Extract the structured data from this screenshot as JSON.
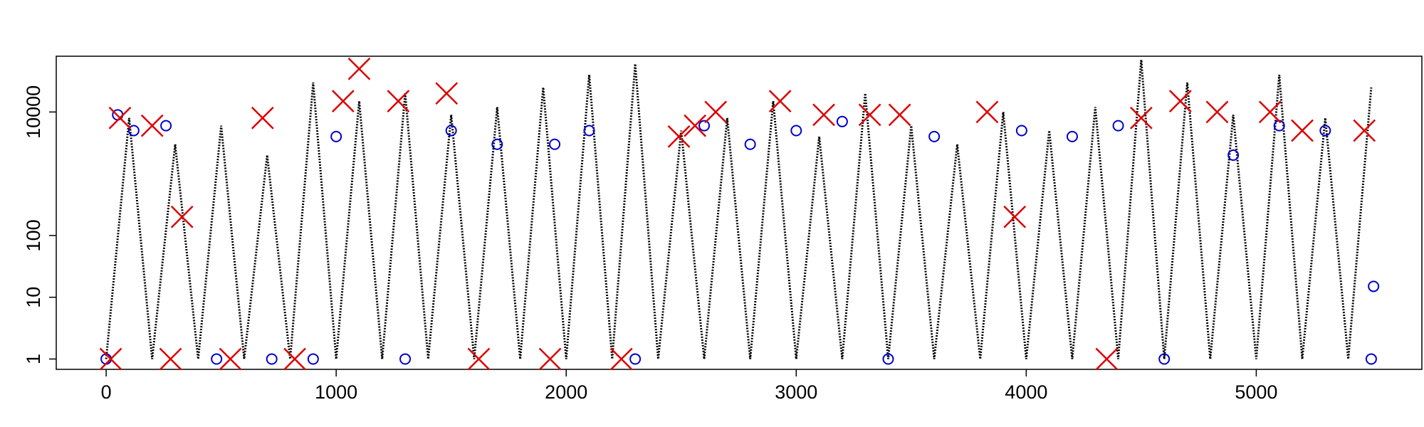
{
  "chart_data": {
    "type": "scatter",
    "log_y": true,
    "xlim": [
      -217,
      5720
    ],
    "ylim": [
      0.68,
      80000
    ],
    "xticks": [
      0,
      1000,
      2000,
      3000,
      4000,
      5000
    ],
    "yticks": [
      1,
      10,
      100,
      10000
    ],
    "series": [
      {
        "marker": "dotted-line",
        "color": "#000000",
        "x": [
          0,
          100,
          200,
          300,
          400,
          500,
          600,
          700,
          800,
          900,
          1000,
          1100,
          1200,
          1300,
          1400,
          1500,
          1600,
          1700,
          1800,
          1900,
          2000,
          2100,
          2200,
          2300,
          2400,
          2500,
          2600,
          2700,
          2800,
          2900,
          3000,
          3100,
          3200,
          3300,
          3400,
          3500,
          3600,
          3700,
          3800,
          3900,
          4000,
          4100,
          4200,
          4300,
          4400,
          4500,
          4600,
          4700,
          4800,
          4900,
          5000,
          5100,
          5200,
          5300,
          5400,
          5500
        ],
        "values": [
          1,
          8000,
          1,
          3000,
          1,
          6000,
          1,
          2000,
          1,
          30000,
          1,
          15000,
          1,
          20000,
          1,
          9000,
          1,
          12000,
          1,
          25000,
          1,
          40000,
          1,
          60000,
          1,
          5000,
          1,
          8000,
          1,
          15000,
          1,
          4000,
          1,
          20000,
          1,
          6000,
          1,
          3000,
          1,
          10000,
          1,
          5000,
          1,
          12000,
          1,
          70000,
          1,
          30000,
          1,
          9000,
          1,
          40000,
          1,
          8000,
          1,
          25000
        ]
      },
      {
        "marker": "circle",
        "color": "#0000cc",
        "x": [
          0,
          50,
          120,
          260,
          480,
          720,
          900,
          1000,
          1300,
          1500,
          1700,
          1950,
          2100,
          2300,
          2600,
          2800,
          3000,
          3200,
          3400,
          3600,
          3980,
          4200,
          4400,
          4600,
          4900,
          5100,
          5300,
          5500,
          5510
        ],
        "values": [
          1,
          9000,
          5000,
          6000,
          1,
          1,
          1,
          4000,
          1,
          5000,
          3000,
          3000,
          5000,
          1,
          6000,
          3000,
          5000,
          7000,
          1,
          4000,
          5000,
          4000,
          6000,
          1,
          2000,
          6000,
          5000,
          1,
          15
        ]
      },
      {
        "marker": "x",
        "color": "#dd0000",
        "x": [
          20,
          60,
          200,
          280,
          330,
          540,
          680,
          820,
          1030,
          1100,
          1270,
          1480,
          1620,
          1930,
          2240,
          2490,
          2560,
          2650,
          2930,
          3120,
          3320,
          3450,
          3830,
          3950,
          4350,
          4500,
          4670,
          4830,
          5060,
          5200,
          5470
        ],
        "values": [
          1,
          8000,
          6000,
          1,
          200,
          1,
          8000,
          1,
          15000,
          50000,
          15000,
          20000,
          1,
          1,
          1,
          4000,
          6000,
          10000,
          15000,
          9000,
          9000,
          9000,
          10000,
          200,
          1,
          8000,
          15000,
          10000,
          10000,
          5000,
          5000
        ]
      }
    ]
  }
}
